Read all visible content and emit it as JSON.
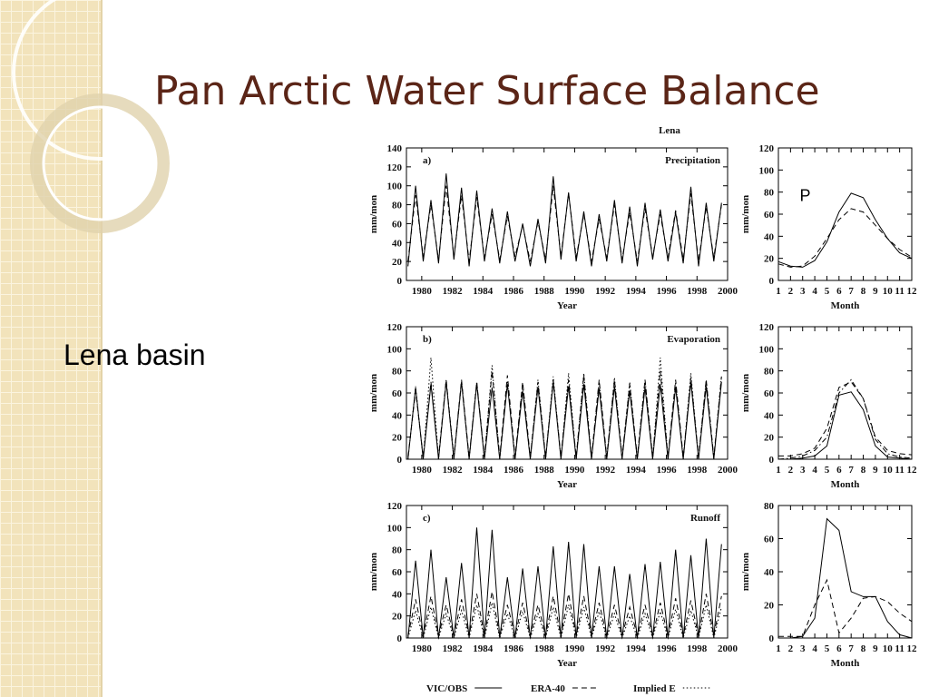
{
  "title": "Pan Arctic Water Surface Balance",
  "side_label": "Lena basin",
  "figure_title": "Lena",
  "chart_data": [
    {
      "type": "line",
      "panel": "a)",
      "title": "Precipitation",
      "xlabel": "Year",
      "ylabel": "mm/mon",
      "xlim": [
        1979,
        2000
      ],
      "xticks": [
        1980,
        1982,
        1984,
        1986,
        1988,
        1990,
        1992,
        1994,
        1996,
        1998,
        2000
      ],
      "ylim": [
        0,
        140
      ],
      "yticks": [
        0,
        20,
        40,
        60,
        80,
        100,
        120,
        140
      ],
      "x": [
        1979.1,
        1979.6,
        1980.1,
        1980.6,
        1981.1,
        1981.6,
        1982.1,
        1982.6,
        1983.1,
        1983.6,
        1984.1,
        1984.6,
        1985.1,
        1985.6,
        1986.1,
        1986.6,
        1987.1,
        1987.6,
        1988.1,
        1988.6,
        1989.1,
        1989.6,
        1990.1,
        1990.6,
        1991.1,
        1991.6,
        1992.1,
        1992.6,
        1993.1,
        1993.6,
        1994.1,
        1994.6,
        1995.1,
        1995.6,
        1996.1,
        1996.6,
        1997.1,
        1997.6,
        1998.1,
        1998.6,
        1999.1,
        1999.6
      ],
      "series": [
        {
          "color": "#000000",
          "line_style": "solid",
          "values": [
            15,
            100,
            20,
            85,
            18,
            113,
            22,
            98,
            15,
            95,
            20,
            76,
            18,
            73,
            20,
            60,
            15,
            65,
            18,
            110,
            22,
            93,
            20,
            73,
            15,
            70,
            20,
            85,
            18,
            78,
            15,
            82,
            22,
            75,
            20,
            72,
            18,
            99,
            15,
            82,
            20,
            82
          ]
        },
        {
          "color": "#000000",
          "line_style": "dashed",
          "values": [
            20,
            90,
            25,
            80,
            22,
            100,
            25,
            90,
            20,
            88,
            24,
            70,
            22,
            68,
            25,
            58,
            20,
            62,
            22,
            100,
            25,
            92,
            24,
            70,
            20,
            65,
            24,
            80,
            22,
            72,
            20,
            76,
            25,
            70,
            24,
            74,
            22,
            92,
            20,
            78,
            24,
            80
          ]
        }
      ]
    },
    {
      "type": "line",
      "annotation": "P",
      "xlabel": "Month",
      "ylabel": "mm/mon",
      "xlim": [
        1,
        12
      ],
      "xticks": [
        1,
        2,
        3,
        4,
        5,
        6,
        7,
        8,
        9,
        10,
        11,
        12
      ],
      "ylim": [
        0,
        120
      ],
      "yticks": [
        0,
        20,
        40,
        60,
        80,
        100,
        120
      ],
      "x": [
        1,
        2,
        3,
        4,
        5,
        6,
        7,
        8,
        9,
        10,
        11,
        12
      ],
      "series": [
        {
          "color": "#000000",
          "line_style": "solid",
          "values": [
            17,
            13,
            12,
            18,
            35,
            62,
            79,
            75,
            55,
            38,
            25,
            20
          ]
        },
        {
          "color": "#000000",
          "line_style": "dashed",
          "values": [
            15,
            12,
            13,
            22,
            38,
            55,
            65,
            62,
            50,
            38,
            28,
            21
          ]
        }
      ]
    },
    {
      "type": "line",
      "panel": "b)",
      "title": "Evaporation",
      "xlabel": "Year",
      "ylabel": "mm/mon",
      "xlim": [
        1979,
        2000
      ],
      "xticks": [
        1980,
        1982,
        1984,
        1986,
        1988,
        1990,
        1992,
        1994,
        1996,
        1998,
        2000
      ],
      "ylim": [
        0,
        120
      ],
      "yticks": [
        0,
        20,
        40,
        60,
        80,
        100,
        120
      ],
      "x": [
        1979.1,
        1979.6,
        1980.1,
        1980.6,
        1981.1,
        1981.6,
        1982.1,
        1982.6,
        1983.1,
        1983.6,
        1984.1,
        1984.6,
        1985.1,
        1985.6,
        1986.1,
        1986.6,
        1987.1,
        1987.6,
        1988.1,
        1988.6,
        1989.1,
        1989.6,
        1990.1,
        1990.6,
        1991.1,
        1991.6,
        1992.1,
        1992.6,
        1993.1,
        1993.6,
        1994.1,
        1994.6,
        1995.1,
        1995.6,
        1996.1,
        1996.6,
        1997.1,
        1997.6,
        1998.1,
        1998.6,
        1999.1,
        1999.6
      ],
      "series": [
        {
          "color": "#000000",
          "line_style": "solid",
          "values": [
            0,
            65,
            0,
            68,
            0,
            70,
            0,
            70,
            0,
            68,
            0,
            65,
            0,
            68,
            0,
            62,
            0,
            65,
            0,
            70,
            0,
            66,
            0,
            68,
            0,
            64,
            0,
            66,
            0,
            62,
            0,
            65,
            0,
            68,
            0,
            65,
            0,
            70,
            0,
            66,
            0,
            70
          ]
        },
        {
          "color": "#000000",
          "line_style": "dashed",
          "values": [
            2,
            62,
            2,
            70,
            2,
            72,
            2,
            72,
            2,
            70,
            2,
            80,
            2,
            76,
            2,
            70,
            2,
            70,
            2,
            72,
            2,
            72,
            2,
            76,
            2,
            72,
            2,
            72,
            2,
            68,
            2,
            72,
            2,
            80,
            2,
            72,
            2,
            74,
            2,
            72,
            2,
            75
          ]
        },
        {
          "color": "#000000",
          "line_style": "dotted",
          "values": [
            0,
            66,
            0,
            92,
            0,
            72,
            0,
            70,
            0,
            70,
            0,
            85,
            0,
            70,
            0,
            68,
            0,
            72,
            0,
            75,
            0,
            78,
            0,
            78,
            0,
            70,
            0,
            74,
            0,
            70,
            0,
            72,
            0,
            92,
            0,
            70,
            0,
            78,
            0,
            72,
            0,
            76
          ]
        }
      ]
    },
    {
      "type": "line",
      "xlabel": "Month",
      "ylabel": "mm/mon",
      "xlim": [
        1,
        12
      ],
      "xticks": [
        1,
        2,
        3,
        4,
        5,
        6,
        7,
        8,
        9,
        10,
        11,
        12
      ],
      "ylim": [
        0,
        120
      ],
      "yticks": [
        0,
        20,
        40,
        60,
        80,
        100,
        120
      ],
      "x": [
        1,
        2,
        3,
        4,
        5,
        6,
        7,
        8,
        9,
        10,
        11,
        12
      ],
      "series": [
        {
          "color": "#000000",
          "line_style": "solid",
          "values": [
            0,
            0,
            1,
            3,
            12,
            58,
            61,
            45,
            12,
            2,
            1,
            0
          ]
        },
        {
          "color": "#000000",
          "line_style": "dashed",
          "values": [
            3,
            3,
            5,
            10,
            28,
            65,
            70,
            55,
            20,
            8,
            5,
            4
          ]
        },
        {
          "color": "#000000",
          "line_style": "dashdot",
          "values": [
            0,
            1,
            3,
            8,
            20,
            60,
            72,
            55,
            18,
            5,
            2,
            1
          ]
        }
      ]
    },
    {
      "type": "line",
      "panel": "c)",
      "title": "Runoff",
      "xlabel": "Year",
      "ylabel": "mm/mon",
      "xlim": [
        1979,
        2000
      ],
      "xticks": [
        1980,
        1982,
        1984,
        1986,
        1988,
        1990,
        1992,
        1994,
        1996,
        1998,
        2000
      ],
      "ylim": [
        0,
        120
      ],
      "yticks": [
        0,
        20,
        40,
        60,
        80,
        100,
        120
      ],
      "x": [
        1979.1,
        1979.6,
        1980.1,
        1980.6,
        1981.1,
        1981.6,
        1982.1,
        1982.6,
        1983.1,
        1983.6,
        1984.1,
        1984.6,
        1985.1,
        1985.6,
        1986.1,
        1986.6,
        1987.1,
        1987.6,
        1988.1,
        1988.6,
        1989.1,
        1989.6,
        1990.1,
        1990.6,
        1991.1,
        1991.6,
        1992.1,
        1992.6,
        1993.1,
        1993.6,
        1994.1,
        1994.6,
        1995.1,
        1995.6,
        1996.1,
        1996.6,
        1997.1,
        1997.6,
        1998.1,
        1998.6,
        1999.1,
        1999.6
      ],
      "series": [
        {
          "name": "VIC/OBS",
          "color": "#000000",
          "line_style": "solid",
          "values": [
            0,
            70,
            0,
            80,
            0,
            55,
            0,
            68,
            0,
            100,
            0,
            98,
            0,
            55,
            0,
            63,
            0,
            65,
            0,
            83,
            0,
            87,
            0,
            85,
            0,
            65,
            0,
            65,
            0,
            58,
            0,
            67,
            0,
            69,
            0,
            80,
            0,
            75,
            0,
            90,
            0,
            85
          ]
        },
        {
          "name": "ERA-40",
          "color": "#000000",
          "line_style": "dashed",
          "values": [
            2,
            35,
            2,
            38,
            2,
            30,
            2,
            35,
            2,
            40,
            2,
            42,
            2,
            30,
            2,
            32,
            2,
            30,
            2,
            38,
            2,
            40,
            2,
            38,
            2,
            32,
            2,
            30,
            2,
            28,
            2,
            30,
            2,
            32,
            2,
            36,
            2,
            34,
            2,
            40,
            2,
            38
          ]
        },
        {
          "name": "Implied E",
          "color": "#000000",
          "line_style": "dotted",
          "values": [
            0,
            25,
            0,
            28,
            0,
            22,
            0,
            25,
            0,
            30,
            0,
            32,
            0,
            22,
            0,
            24,
            0,
            22,
            0,
            28,
            0,
            30,
            0,
            28,
            0,
            24,
            0,
            22,
            0,
            20,
            0,
            22,
            0,
            24,
            0,
            26,
            0,
            25,
            0,
            30,
            0,
            28
          ]
        }
      ]
    },
    {
      "type": "line",
      "xlabel": "Month",
      "ylabel": "mm/mon",
      "xlim": [
        1,
        12
      ],
      "xticks": [
        1,
        2,
        3,
        4,
        5,
        6,
        7,
        8,
        9,
        10,
        11,
        12
      ],
      "ylim": [
        0,
        80
      ],
      "yticks": [
        0,
        20,
        40,
        60,
        80
      ],
      "x": [
        1,
        2,
        3,
        4,
        5,
        6,
        7,
        8,
        9,
        10,
        11,
        12
      ],
      "series": [
        {
          "color": "#000000",
          "line_style": "solid",
          "values": [
            0,
            0,
            1,
            12,
            72,
            65,
            28,
            25,
            25,
            10,
            2,
            0
          ]
        },
        {
          "color": "#000000",
          "line_style": "dashed",
          "values": [
            1,
            1,
            1,
            20,
            35,
            3,
            12,
            24,
            25,
            22,
            15,
            10
          ]
        }
      ]
    }
  ]
}
